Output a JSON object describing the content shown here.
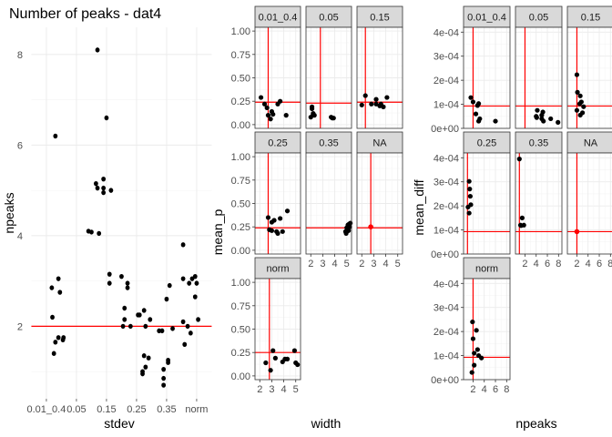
{
  "chart_data": [
    {
      "id": "p1",
      "type": "scatter",
      "title": "Number of peaks - dat4",
      "xlabel": "stdev",
      "ylabel": "npeaks",
      "categories": [
        "0.01_0.4",
        "0.05",
        "0.15",
        "0.25",
        "0.35",
        "norm"
      ],
      "tick_labels": [
        "0.01_0.4",
        "0.05",
        "0.15",
        "0.25",
        "0.35",
        "norm"
      ],
      "ylim": [
        0.4,
        8.6
      ],
      "yticks": [
        2,
        4,
        6,
        8
      ],
      "hline": 2,
      "colors": {
        "points": "#000000",
        "hline": "#ff0000",
        "panel_bg": "#ffffff",
        "grid": "#ebebeb"
      },
      "points": [
        [
          0.18,
          2.85
        ],
        [
          0.2,
          2.2
        ],
        [
          0.3,
          6.2
        ],
        [
          0.3,
          1.65
        ],
        [
          0.25,
          1.4
        ],
        [
          0.4,
          1.75
        ],
        [
          0.4,
          3.05
        ],
        [
          0.45,
          2.75
        ],
        [
          0.55,
          1.7
        ],
        [
          0.57,
          1.75
        ],
        [
          1.4,
          4.1
        ],
        [
          1.5,
          4.08
        ],
        [
          1.65,
          5.15
        ],
        [
          1.7,
          5.05
        ],
        [
          1.75,
          4.05
        ],
        [
          1.7,
          8.1
        ],
        [
          1.9,
          5.25
        ],
        [
          1.9,
          5.05
        ],
        [
          2.0,
          6.6
        ],
        [
          1.9,
          4.95
        ],
        [
          2.15,
          5.0
        ],
        [
          2.1,
          3.15
        ],
        [
          2.1,
          2.95
        ],
        [
          2.5,
          3.1
        ],
        [
          2.55,
          2.0
        ],
        [
          2.6,
          2.4
        ],
        [
          2.6,
          2.15
        ],
        [
          2.7,
          2.95
        ],
        [
          2.8,
          2.0
        ],
        [
          2.7,
          2.85
        ],
        [
          3.05,
          2.25
        ],
        [
          3.1,
          2.25
        ],
        [
          3.2,
          1.0
        ],
        [
          3.25,
          1.35
        ],
        [
          3.25,
          2.35
        ],
        [
          3.3,
          1.1
        ],
        [
          3.3,
          2.0
        ],
        [
          3.4,
          1.3
        ],
        [
          3.45,
          2.15
        ],
        [
          3.2,
          0.95
        ],
        [
          3.75,
          1.9
        ],
        [
          3.85,
          1.9
        ],
        [
          3.9,
          0.85
        ],
        [
          3.9,
          0.7
        ],
        [
          3.9,
          1.05
        ],
        [
          4.0,
          2.6
        ],
        [
          4.05,
          1.2
        ],
        [
          4.05,
          1.25
        ],
        [
          4.1,
          2.9
        ],
        [
          4.2,
          1.95
        ],
        [
          4.55,
          3.8
        ],
        [
          4.55,
          3.05
        ],
        [
          4.6,
          1.6
        ],
        [
          4.7,
          2.0
        ],
        [
          4.75,
          2.95
        ],
        [
          4.85,
          3.05
        ],
        [
          4.95,
          2.65
        ],
        [
          5.0,
          2.95
        ],
        [
          5.05,
          2.15
        ],
        [
          4.95,
          3.1
        ],
        [
          4.55,
          2.1
        ],
        [
          4.8,
          1.85
        ]
      ]
    },
    {
      "id": "p2",
      "type": "scatter",
      "xlabel": "width",
      "ylabel": "mean_p",
      "xlim": [
        1.6,
        5.4
      ],
      "xticks": [
        2,
        3,
        4,
        5
      ],
      "ylim": [
        -0.04,
        1.04
      ],
      "yticks": [
        0,
        0.25,
        0.5,
        0.75,
        1.0
      ],
      "ytick_labels": [
        "0.00",
        "0.25",
        "0.50",
        "0.75",
        "1.00"
      ],
      "colors": {
        "points": "#000000",
        "ref_lines": "#ff0000",
        "strip_bg": "#d9d9d9"
      },
      "panels": [
        {
          "strip": "0.01_0.4",
          "vline": 2.7,
          "hline": 0.24,
          "points": [
            [
              2.1,
              0.29
            ],
            [
              2.4,
              0.22
            ],
            [
              2.6,
              0.18
            ],
            [
              2.7,
              0.1
            ],
            [
              3.0,
              0.14
            ],
            [
              3.1,
              0.11
            ],
            [
              2.9,
              0.06
            ],
            [
              3.5,
              0.22
            ],
            [
              3.7,
              0.25
            ],
            [
              4.2,
              0.1
            ]
          ]
        },
        {
          "strip": "0.05",
          "vline": 2.8,
          "hline": 0.23,
          "points": [
            [
              2.1,
              0.19
            ],
            [
              2.3,
              0.1
            ],
            [
              2.1,
              0.17
            ],
            [
              2.2,
              0.12
            ],
            [
              2.0,
              0.08
            ],
            [
              3.7,
              0.08
            ],
            [
              3.8,
              0.07
            ],
            [
              3.9,
              0.07
            ],
            [
              2.2,
              0.11
            ]
          ]
        },
        {
          "strip": "0.15",
          "vline": 2.3,
          "hline": 0.24,
          "points": [
            [
              2.0,
              0.21
            ],
            [
              2.3,
              0.31
            ],
            [
              2.8,
              0.22
            ],
            [
              3.2,
              0.27
            ],
            [
              3.2,
              0.22
            ],
            [
              3.8,
              0.19
            ],
            [
              3.6,
              0.22
            ],
            [
              4.1,
              0.29
            ],
            [
              3.5,
              0.2
            ]
          ]
        },
        {
          "strip": "0.25",
          "vline": 2.7,
          "hline": 0.24,
          "points": [
            [
              2.7,
              0.35
            ],
            [
              2.8,
              0.22
            ],
            [
              3.0,
              0.21
            ],
            [
              3.2,
              0.32
            ],
            [
              3.4,
              0.2
            ],
            [
              3.5,
              0.18
            ],
            [
              3.7,
              0.34
            ],
            [
              3.9,
              0.2
            ],
            [
              4.3,
              0.42
            ],
            [
              3.0,
              0.3
            ]
          ]
        },
        {
          "strip": "0.35",
          "vline": null,
          "hline": 0.24,
          "points": [
            [
              4.9,
              0.2
            ],
            [
              5.0,
              0.24
            ],
            [
              5.05,
              0.23
            ],
            [
              5.1,
              0.27
            ],
            [
              5.2,
              0.28
            ],
            [
              5.3,
              0.29
            ],
            [
              4.95,
              0.18
            ],
            [
              5.0,
              0.2
            ],
            [
              5.15,
              0.21
            ],
            [
              5.25,
              0.25
            ]
          ]
        },
        {
          "strip": "NA",
          "vline": 2.75,
          "hline": 0.24,
          "points": [],
          "red_points": [
            [
              2.75,
              0.25
            ]
          ]
        },
        {
          "strip": "norm",
          "vline": 2.8,
          "hline": 0.25,
          "points": [
            [
              2.5,
              0.14
            ],
            [
              2.9,
              0.06
            ],
            [
              3.1,
              0.27
            ],
            [
              3.3,
              0.19
            ],
            [
              3.9,
              0.15
            ],
            [
              4.1,
              0.18
            ],
            [
              4.3,
              0.18
            ],
            [
              4.9,
              0.27
            ],
            [
              5.0,
              0.14
            ],
            [
              5.15,
              0.12
            ]
          ]
        }
      ]
    },
    {
      "id": "p3",
      "type": "scatter",
      "xlabel": "npeaks",
      "ylabel": "mean_diff",
      "xlim": [
        0.3,
        8.6
      ],
      "xticks": [
        2,
        4,
        6,
        8
      ],
      "ylim": [
        0,
        0.00042
      ],
      "yticks": [
        0,
        0.0001,
        0.0002,
        0.0003,
        0.0004
      ],
      "ytick_labels": [
        "0e+00",
        "1e-04",
        "2e-04",
        "3e-04",
        "4e-04"
      ],
      "colors": {
        "points": "#000000",
        "ref_lines": "#ff0000",
        "strip_bg": "#d9d9d9"
      },
      "panels": [
        {
          "strip": "0.01_0.4",
          "vline": 2,
          "hline": 9.3e-05,
          "points": [
            [
              1.6,
              0.000128
            ],
            [
              2.0,
              0.00011
            ],
            [
              2.5,
              6e-05
            ],
            [
              2.8,
              9.5e-05
            ],
            [
              3.0,
              0.000103
            ],
            [
              3.2,
              4e-05
            ],
            [
              3.0,
              3e-05
            ],
            [
              6.0,
              3e-05
            ]
          ]
        },
        {
          "strip": "0.05",
          "vline": 2,
          "hline": 9.3e-05,
          "points": [
            [
              4.0,
              5e-05
            ],
            [
              4.2,
              7.5e-05
            ],
            [
              5.0,
              5.5e-05
            ],
            [
              5.0,
              4e-05
            ],
            [
              5.2,
              6.8e-05
            ],
            [
              5.3,
              3e-05
            ],
            [
              6.6,
              4e-05
            ],
            [
              7.9,
              2.5e-05
            ],
            [
              4.1,
              4.5e-05
            ]
          ]
        },
        {
          "strip": "0.15",
          "vline": 2,
          "hline": 9.3e-05,
          "points": [
            [
              2.0,
              0.000223
            ],
            [
              2.1,
              0.00015
            ],
            [
              2.6,
              0.000135
            ],
            [
              2.8,
              0.00011
            ],
            [
              3.0,
              6.5e-05
            ],
            [
              2.5,
              0.000102
            ],
            [
              3.2,
              9e-05
            ],
            [
              2.6,
              5.5e-05
            ],
            [
              2.0,
              7.5e-05
            ]
          ]
        },
        {
          "strip": "0.25",
          "vline": 1,
          "hline": 9.3e-05,
          "points": [
            [
              1.1,
              0.000195
            ],
            [
              1.3,
              0.000302
            ],
            [
              1.4,
              0.00027
            ],
            [
              1.5,
              0.00024
            ],
            [
              1.6,
              0.000205
            ],
            [
              1.3,
              0.00017
            ]
          ]
        },
        {
          "strip": "0.35",
          "vline": 1,
          "hline": 9.3e-05,
          "points": [
            [
              1.0,
              0.000395
            ],
            [
              1.2,
              0.00012
            ],
            [
              1.5,
              0.00015
            ],
            [
              1.8,
              0.00012
            ],
            [
              1.3,
              0.000118
            ]
          ]
        },
        {
          "strip": "NA",
          "vline": 2,
          "hline": 9.3e-05,
          "points": [],
          "red_points": [
            [
              2.0,
              9.3e-05
            ]
          ]
        },
        {
          "strip": "norm",
          "vline": 2,
          "hline": 9.3e-05,
          "points": [
            [
              1.9,
              0.00024
            ],
            [
              2.0,
              0.00017
            ],
            [
              2.2,
              0.00011
            ],
            [
              2.6,
              0.000205
            ],
            [
              2.8,
              0.000125
            ],
            [
              3.0,
              0.0001
            ],
            [
              3.5,
              9e-05
            ],
            [
              2.2,
              6e-05
            ],
            [
              1.8,
              3e-05
            ]
          ]
        }
      ]
    }
  ]
}
